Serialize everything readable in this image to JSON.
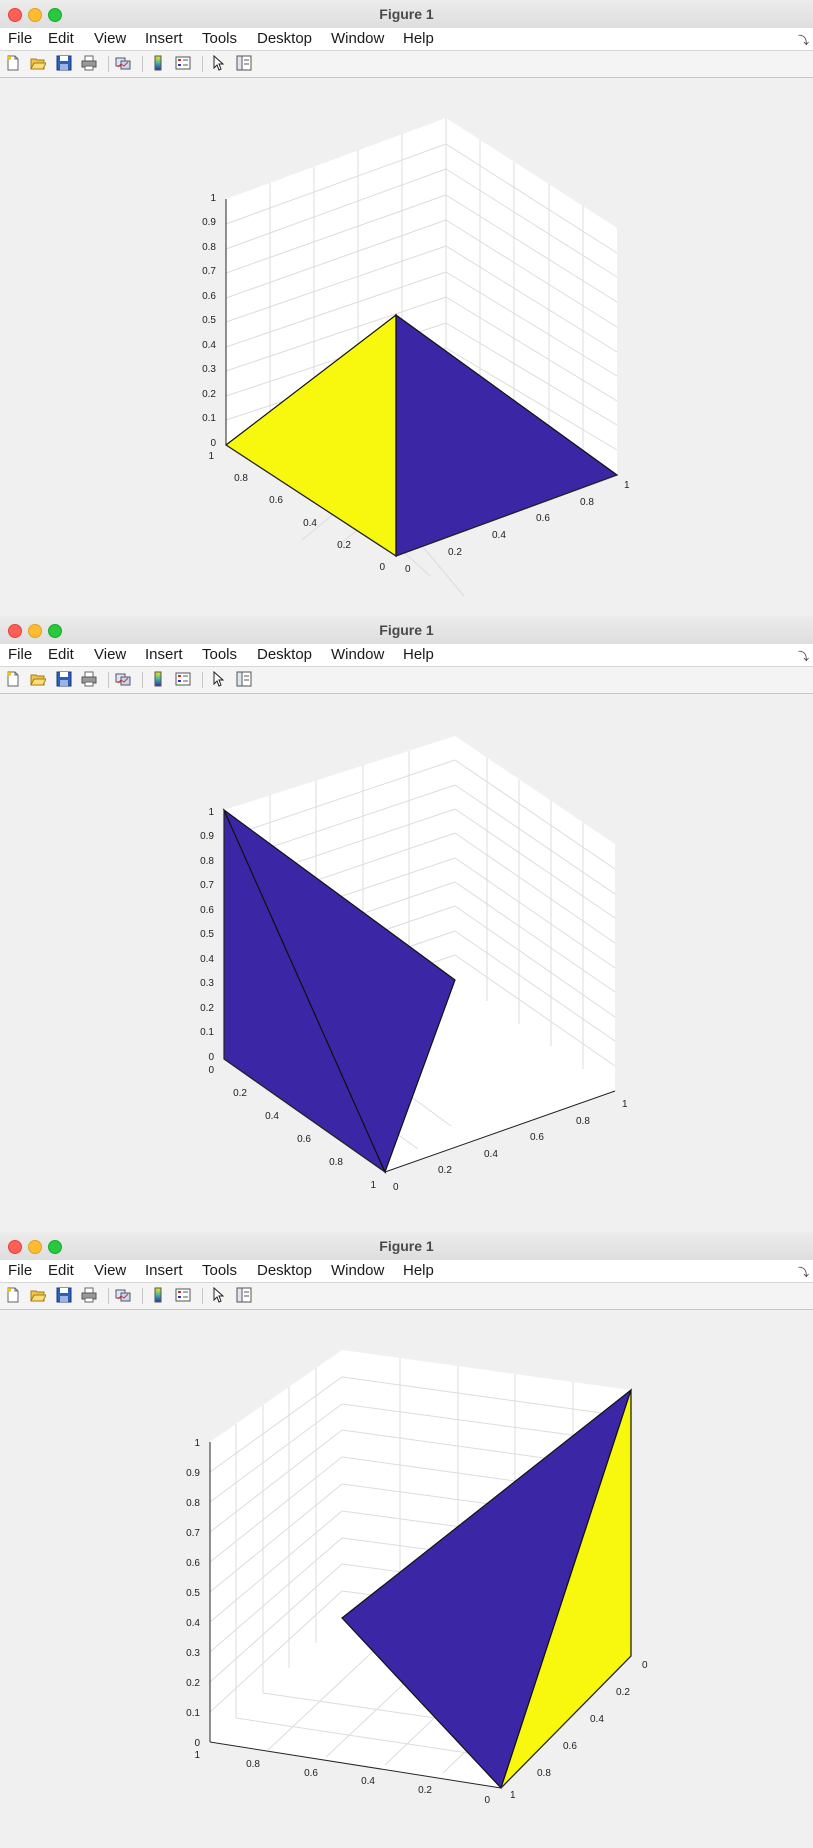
{
  "colors": {
    "blue_face": "#3b27a6",
    "yellow_face": "#f8f80f",
    "grid": "#dcdcdc",
    "axis": "#262626"
  },
  "windows": [
    {
      "title": "Figure 1",
      "menu": [
        "File",
        "Edit",
        "View",
        "Insert",
        "Tools",
        "Desktop",
        "Window",
        "Help"
      ],
      "menu_arrow": "⤵",
      "z_ticks": [
        "0",
        "0.1",
        "0.2",
        "0.3",
        "0.4",
        "0.5",
        "0.6",
        "0.7",
        "0.8",
        "0.9",
        "1"
      ],
      "left_axis_ticks": [
        "1",
        "0.8",
        "0.6",
        "0.4",
        "0.2",
        "0"
      ],
      "right_axis_ticks": [
        "0",
        "0.2",
        "0.4",
        "0.6",
        "0.8",
        "1"
      ]
    },
    {
      "title": "Figure 1",
      "menu": [
        "File",
        "Edit",
        "View",
        "Insert",
        "Tools",
        "Desktop",
        "Window",
        "Help"
      ],
      "menu_arrow": "⤵",
      "z_ticks": [
        "0",
        "0.1",
        "0.2",
        "0.3",
        "0.4",
        "0.5",
        "0.6",
        "0.7",
        "0.8",
        "0.9",
        "1"
      ],
      "left_axis_ticks": [
        "0",
        "0.2",
        "0.4",
        "0.6",
        "0.8",
        "1"
      ],
      "right_axis_ticks": [
        "0",
        "0.2",
        "0.4",
        "0.6",
        "0.8",
        "1"
      ]
    },
    {
      "title": "Figure 1",
      "menu": [
        "File",
        "Edit",
        "View",
        "Insert",
        "Tools",
        "Desktop",
        "Window",
        "Help"
      ],
      "menu_arrow": "⤵",
      "z_ticks": [
        "0",
        "0.1",
        "0.2",
        "0.3",
        "0.4",
        "0.5",
        "0.6",
        "0.7",
        "0.8",
        "0.9",
        "1"
      ],
      "left_axis_ticks": [
        "1",
        "0.8",
        "0.6",
        "0.4",
        "0.2",
        "0"
      ],
      "right_axis_ticks": [
        "1",
        "0.8",
        "0.6",
        "0.4",
        "0.2",
        "0"
      ]
    }
  ],
  "toolbar_icons": [
    "new-figure-icon",
    "open-file-icon",
    "save-icon",
    "print-icon",
    "link-plot-icon",
    "colorbar-icon",
    "legend-icon",
    "pointer-icon",
    "property-inspector-icon"
  ]
}
